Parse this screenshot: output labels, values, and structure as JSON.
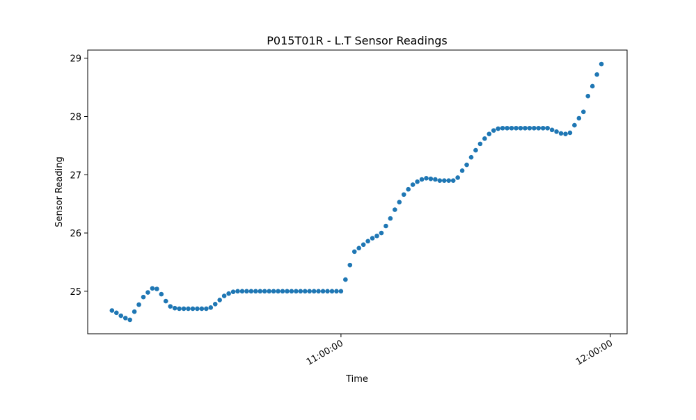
{
  "chart_data": {
    "type": "scatter",
    "title": "P015T01R - L.T Sensor Readings",
    "x_label": "Time",
    "y_label": "Sensor Reading",
    "color": "#1f77b4",
    "x": [
      "10:09:00",
      "10:10:00",
      "10:11:00",
      "10:12:00",
      "10:13:00",
      "10:14:00",
      "10:15:00",
      "10:16:00",
      "10:17:00",
      "10:18:00",
      "10:19:00",
      "10:20:00",
      "10:21:00",
      "10:22:00",
      "10:23:00",
      "10:24:00",
      "10:25:00",
      "10:26:00",
      "10:27:00",
      "10:28:00",
      "10:29:00",
      "10:30:00",
      "10:31:00",
      "10:32:00",
      "10:33:00",
      "10:34:00",
      "10:35:00",
      "10:36:00",
      "10:37:00",
      "10:38:00",
      "10:39:00",
      "10:40:00",
      "10:41:00",
      "10:42:00",
      "10:43:00",
      "10:44:00",
      "10:45:00",
      "10:46:00",
      "10:47:00",
      "10:48:00",
      "10:49:00",
      "10:50:00",
      "10:51:00",
      "10:52:00",
      "10:53:00",
      "10:54:00",
      "10:55:00",
      "10:56:00",
      "10:57:00",
      "10:58:00",
      "10:59:00",
      "11:00:00",
      "11:01:00",
      "11:02:00",
      "11:03:00",
      "11:04:00",
      "11:05:00",
      "11:06:00",
      "11:07:00",
      "11:08:00",
      "11:09:00",
      "11:10:00",
      "11:11:00",
      "11:12:00",
      "11:13:00",
      "11:14:00",
      "11:15:00",
      "11:16:00",
      "11:17:00",
      "11:18:00",
      "11:19:00",
      "11:20:00",
      "11:21:00",
      "11:22:00",
      "11:23:00",
      "11:24:00",
      "11:25:00",
      "11:26:00",
      "11:27:00",
      "11:28:00",
      "11:29:00",
      "11:30:00",
      "11:31:00",
      "11:32:00",
      "11:33:00",
      "11:34:00",
      "11:35:00",
      "11:36:00",
      "11:37:00",
      "11:38:00",
      "11:39:00",
      "11:40:00",
      "11:41:00",
      "11:42:00",
      "11:43:00",
      "11:44:00",
      "11:45:00",
      "11:46:00",
      "11:47:00",
      "11:48:00",
      "11:49:00",
      "11:50:00",
      "11:51:00",
      "11:52:00",
      "11:53:00",
      "11:54:00",
      "11:55:00",
      "11:56:00",
      "11:57:00",
      "11:58:00"
    ],
    "values": [
      24.67,
      24.63,
      24.58,
      24.54,
      24.51,
      24.65,
      24.77,
      24.9,
      24.98,
      25.05,
      25.04,
      24.95,
      24.83,
      24.74,
      24.71,
      24.7,
      24.7,
      24.7,
      24.7,
      24.7,
      24.7,
      24.7,
      24.72,
      24.78,
      24.85,
      24.92,
      24.96,
      24.99,
      25,
      25,
      25,
      25,
      25,
      25,
      25,
      25,
      25,
      25,
      25,
      25,
      25,
      25,
      25,
      25,
      25,
      25,
      25,
      25,
      25,
      25,
      25,
      25,
      25.2,
      25.45,
      25.68,
      25.74,
      25.8,
      25.86,
      25.91,
      25.95,
      26.0,
      26.12,
      26.25,
      26.4,
      26.53,
      26.66,
      26.75,
      26.83,
      26.88,
      26.92,
      26.94,
      26.93,
      26.92,
      26.9,
      26.9,
      26.9,
      26.9,
      26.95,
      27.07,
      27.17,
      27.3,
      27.42,
      27.53,
      27.62,
      27.7,
      27.76,
      27.79,
      27.8,
      27.8,
      27.8,
      27.8,
      27.8,
      27.8,
      27.8,
      27.8,
      27.8,
      27.8,
      27.8,
      27.77,
      27.74,
      27.71,
      27.7,
      27.72,
      27.85,
      27.97,
      28.08,
      28.35,
      28.52,
      28.72,
      28.9
    ],
    "xlim": [
      "10:03:36",
      "12:03:43"
    ],
    "xticks": [
      "11:00:00",
      "12:00:00"
    ],
    "ylim": [
      24.27,
      29.14
    ],
    "yticks": [
      25,
      26,
      27,
      28,
      29
    ]
  }
}
